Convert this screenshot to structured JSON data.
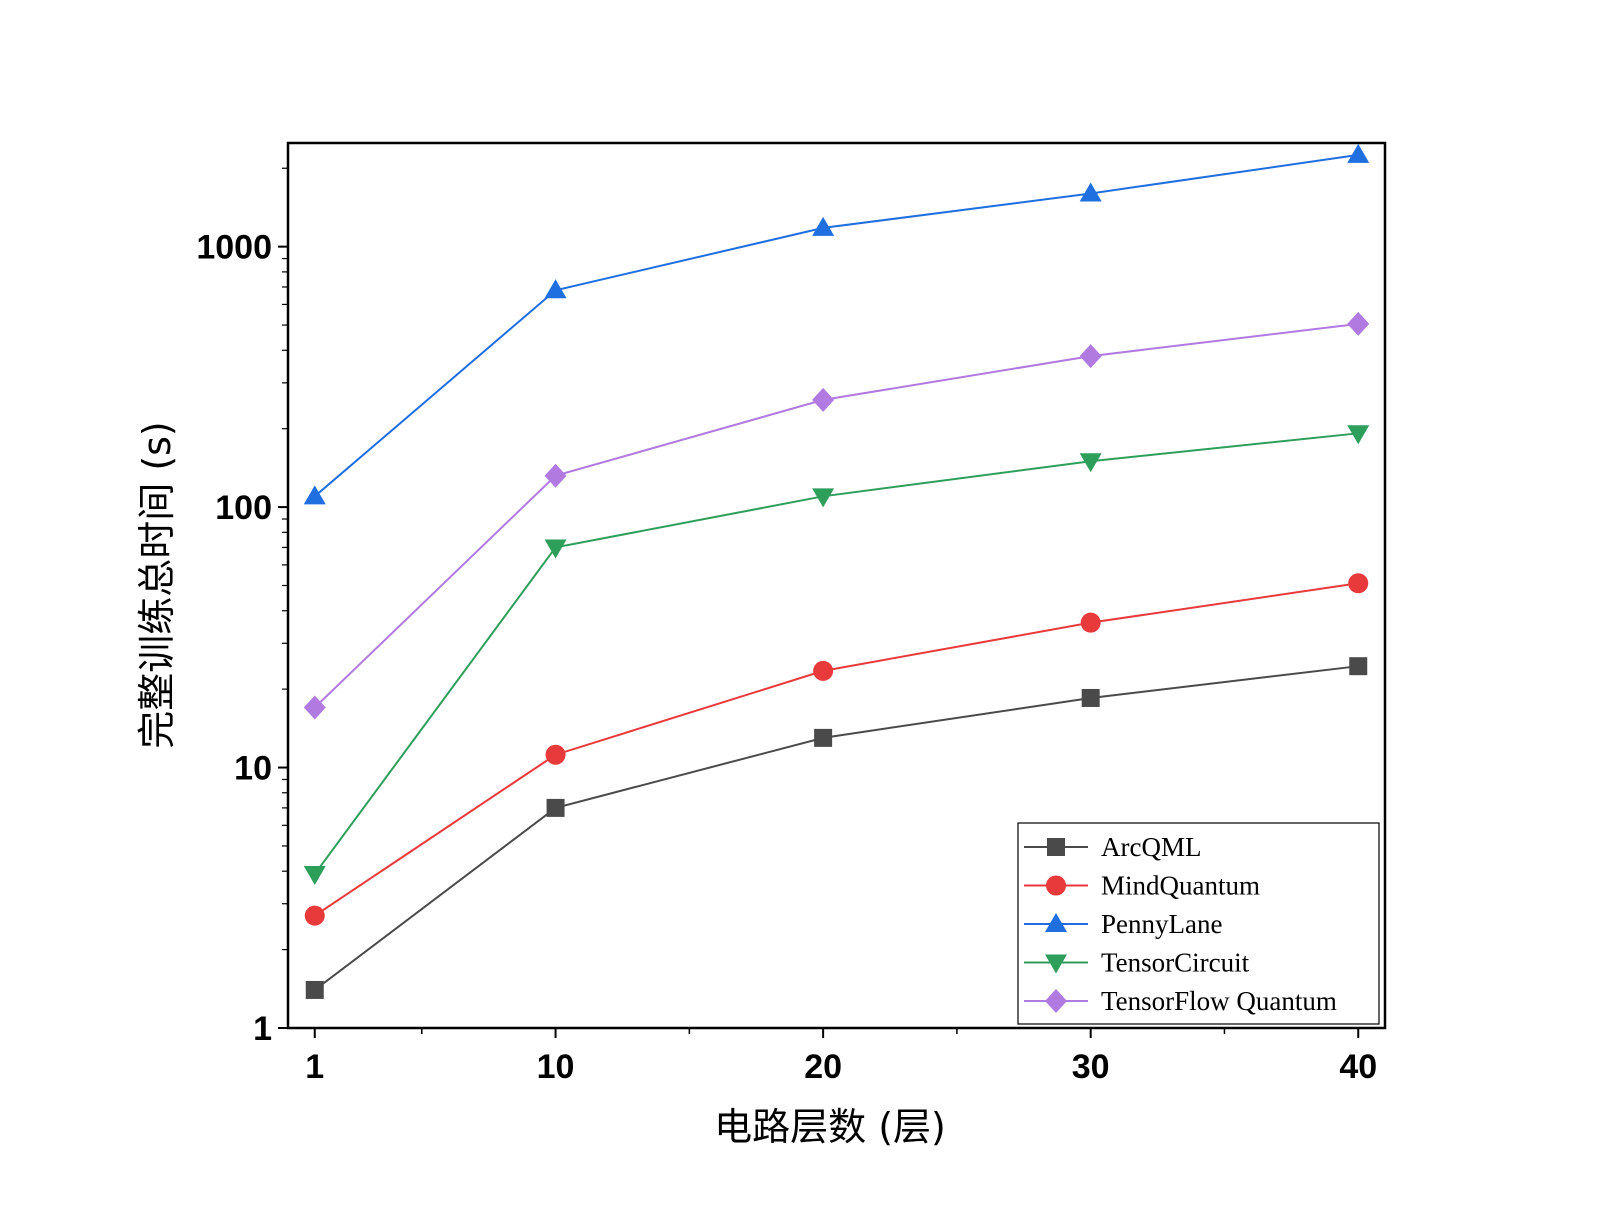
{
  "chart_data": {
    "type": "line",
    "xlabel": "电路层数 (层)",
    "ylabel": "完整训练总时间 (s)",
    "y_scale": "log",
    "ylim": [
      1,
      2500
    ],
    "xlim": [
      0,
      41
    ],
    "x_ticks": [
      1,
      10,
      20,
      30,
      40
    ],
    "y_ticks": [
      1,
      10,
      100,
      1000
    ],
    "y_tick_labels": [
      "1",
      "10",
      "100",
      "1000"
    ],
    "x": [
      1,
      10,
      20,
      30,
      40
    ],
    "legend_position": "bottom-right",
    "grid": false,
    "series": [
      {
        "name": "ArcQML",
        "color": "#4a4a4a",
        "marker": "square",
        "values": [
          1.4,
          7.0,
          13.0,
          18.5,
          24.5
        ]
      },
      {
        "name": "MindQuantum",
        "color": "#e8393b",
        "marker": "circle",
        "values": [
          2.7,
          11.2,
          23.5,
          36.0,
          51.0
        ]
      },
      {
        "name": "PennyLane",
        "color": "#1f6fe0",
        "marker": "triangle-up",
        "values": [
          110,
          680,
          1180,
          1600,
          2250
        ]
      },
      {
        "name": "TensorCircuit",
        "color": "#2e9e5b",
        "marker": "triangle-down",
        "values": [
          3.9,
          70,
          110,
          150,
          192
        ]
      },
      {
        "name": "TensorFlow Quantum",
        "color": "#b07ae0",
        "marker": "diamond",
        "values": [
          17,
          132,
          258,
          380,
          505
        ]
      }
    ]
  }
}
